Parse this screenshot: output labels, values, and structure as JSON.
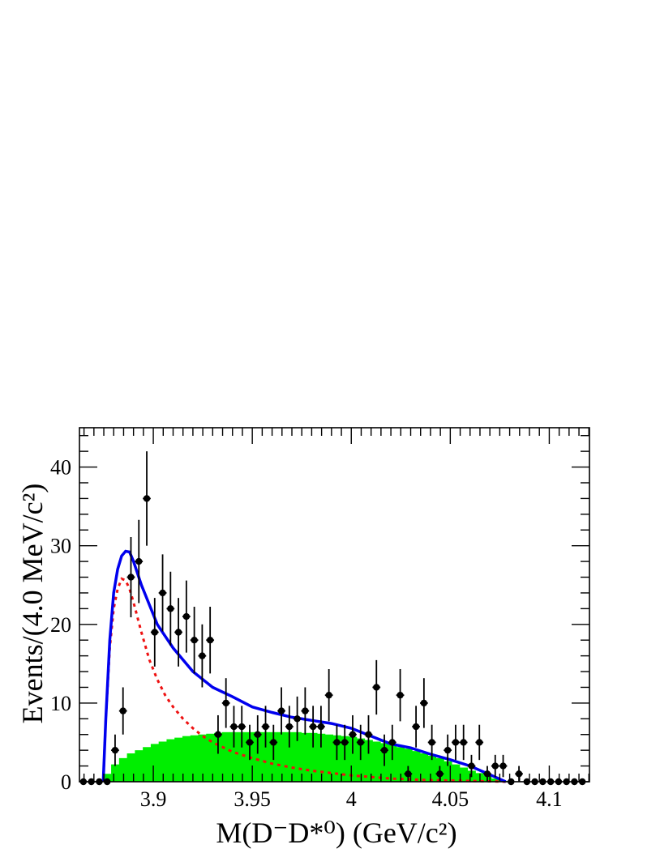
{
  "chart_data": {
    "type": "scatter",
    "title": "",
    "xlabel": "M(D⁻D*⁰) (GeV/c²)",
    "ylabel": "Events/(4.0 MeV/c²)",
    "xlim": [
      3.8627,
      4.1203
    ],
    "ylim": [
      0,
      45
    ],
    "xticks": [
      3.9,
      3.95,
      4,
      4.05,
      4.1
    ],
    "xtick_labels": [
      "3.9",
      "3.95",
      "4",
      "4.05",
      "4.1"
    ],
    "yticks": [
      0,
      10,
      20,
      30,
      40
    ],
    "ytick_labels": [
      "0",
      "10",
      "20",
      "30",
      "40"
    ],
    "bin_width_gev": 0.004,
    "grid": false,
    "legend": "none",
    "colors": {
      "data": "#000000",
      "total_fit": "#0000ee",
      "signal": "#ee1111",
      "background": "#00ee00"
    },
    "series": [
      {
        "kind": "data_points_with_errors",
        "x": [
          3.8647,
          3.8687,
          3.8727,
          3.8767,
          3.8807,
          3.8847,
          3.8887,
          3.8927,
          3.8967,
          3.9007,
          3.9047,
          3.9087,
          3.9127,
          3.9167,
          3.9207,
          3.9247,
          3.9287,
          3.9327,
          3.9367,
          3.9407,
          3.9447,
          3.9487,
          3.9527,
          3.9567,
          3.9607,
          3.9647,
          3.9687,
          3.9727,
          3.9767,
          3.9807,
          3.9847,
          3.9887,
          3.9927,
          3.9967,
          4.0007,
          4.0047,
          4.0087,
          4.0127,
          4.0167,
          4.0207,
          4.0247,
          4.0287,
          4.0327,
          4.0367,
          4.0407,
          4.0447,
          4.0487,
          4.0527,
          4.0567,
          4.0607,
          4.0647,
          4.0687,
          4.0727,
          4.0767,
          4.0807,
          4.0847,
          4.0887,
          4.0927,
          4.0967,
          4.1007,
          4.1047,
          4.1087,
          4.1127,
          4.1167
        ],
        "y": [
          0,
          0,
          0,
          0,
          4,
          9,
          26,
          28,
          36,
          19,
          24,
          22,
          19,
          21,
          18,
          16,
          18,
          6,
          10,
          7,
          7,
          5,
          6,
          7,
          5,
          9,
          7,
          8,
          9,
          7,
          7,
          11,
          5,
          5,
          6,
          5,
          6,
          12,
          4,
          5,
          11,
          1,
          7,
          10,
          5,
          1,
          4,
          5,
          5,
          2,
          5,
          1,
          2,
          2,
          0,
          1,
          0,
          0,
          0,
          0,
          0,
          0,
          0,
          0
        ]
      },
      {
        "kind": "total_fit_curve",
        "x": [
          3.8747,
          3.876,
          3.878,
          3.88,
          3.882,
          3.884,
          3.886,
          3.888,
          3.89,
          3.894,
          3.898,
          3.902,
          3.906,
          3.91,
          3.915,
          3.92,
          3.925,
          3.93,
          3.94,
          3.95,
          3.96,
          3.97,
          3.98,
          3.99,
          4.0,
          4.01,
          4.02,
          4.03,
          4.04,
          4.05,
          4.06,
          4.07,
          4.078
        ],
        "y": [
          0,
          8,
          18,
          24,
          27,
          28.7,
          29.3,
          29.2,
          28,
          25,
          22.5,
          20,
          18.5,
          17,
          15.5,
          14,
          13,
          12,
          10.8,
          9.5,
          8.8,
          8.2,
          7.8,
          7.4,
          6.8,
          5.8,
          4.8,
          4.3,
          3.5,
          2.8,
          2.0,
          0.9,
          0
        ]
      },
      {
        "kind": "signal_curve",
        "x": [
          3.8747,
          3.876,
          3.878,
          3.88,
          3.882,
          3.884,
          3.886,
          3.888,
          3.89,
          3.894,
          3.898,
          3.902,
          3.906,
          3.91,
          3.915,
          3.92,
          3.925,
          3.93,
          3.94,
          3.95,
          3.96,
          3.97,
          3.98,
          3.99,
          4.0,
          4.01,
          4.02,
          4.03,
          4.04,
          4.05,
          4.06,
          4.07,
          4.078
        ],
        "y": [
          0,
          8,
          17,
          22,
          24.5,
          25.8,
          25.6,
          24.5,
          22.8,
          19,
          15.5,
          13,
          11,
          9.5,
          8,
          6.8,
          5.8,
          5,
          3.8,
          3,
          2.3,
          1.8,
          1.4,
          1.1,
          0.8,
          0.6,
          0.4,
          0.3,
          0.2,
          0.15,
          0.1,
          0.05,
          0
        ]
      },
      {
        "kind": "background_histogram",
        "x": [
          3.8767,
          3.8807,
          3.8847,
          3.8887,
          3.8927,
          3.8967,
          3.9007,
          3.9047,
          3.9087,
          3.9127,
          3.9167,
          3.9207,
          3.9247,
          3.9287,
          3.9327,
          3.9367,
          3.9407,
          3.9447,
          3.9487,
          3.9527,
          3.9567,
          3.9607,
          3.9647,
          3.9687,
          3.9727,
          3.9767,
          3.9807,
          3.9847,
          3.9887,
          3.9927,
          3.9967,
          4.0007,
          4.0047,
          4.0087,
          4.0127,
          4.0167,
          4.0207,
          4.0247,
          4.0287,
          4.0327,
          4.0367,
          4.0407,
          4.0447,
          4.0487,
          4.0527,
          4.0567,
          4.0607,
          4.0647,
          4.0687,
          4.0727,
          4.0767
        ],
        "y": [
          1.0,
          2.2,
          3.0,
          3.6,
          4.0,
          4.4,
          4.8,
          5.1,
          5.4,
          5.6,
          5.8,
          5.9,
          6.0,
          6.1,
          6.2,
          6.3,
          6.3,
          6.3,
          6.3,
          6.3,
          6.3,
          6.3,
          6.3,
          6.3,
          6.3,
          6.2,
          6.2,
          6.1,
          6.0,
          5.9,
          5.8,
          5.7,
          5.5,
          5.3,
          5.1,
          4.9,
          4.7,
          4.4,
          4.2,
          3.9,
          3.6,
          3.3,
          3.0,
          2.6,
          2.2,
          1.8,
          1.4,
          1.1,
          0.8,
          0.4,
          0.1
        ]
      }
    ]
  }
}
